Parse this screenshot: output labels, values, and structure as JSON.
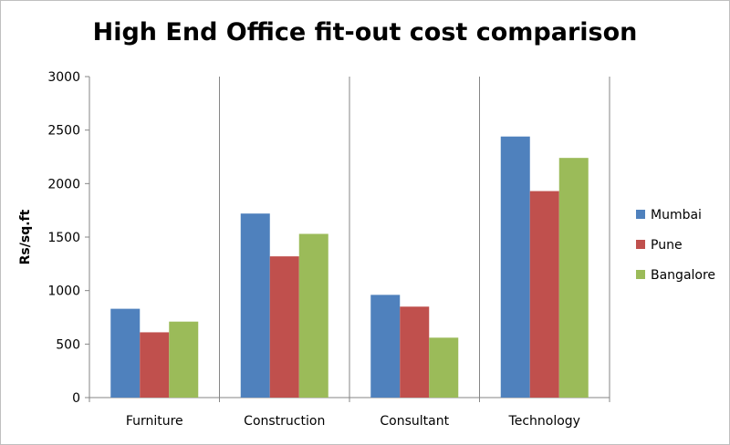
{
  "chart_data": {
    "type": "bar",
    "title": "High End Office fit-out cost comparison",
    "xlabel": "",
    "ylabel": "Rs/sq.ft",
    "categories": [
      "Furniture",
      "Construction",
      "Consultant",
      "Technology"
    ],
    "series": [
      {
        "name": "Mumbai",
        "color": "#4f81bd",
        "values": [
          830,
          1720,
          960,
          2440
        ]
      },
      {
        "name": "Pune",
        "color": "#c0504d",
        "values": [
          610,
          1320,
          850,
          1930
        ]
      },
      {
        "name": "Bangalore",
        "color": "#9bbb59",
        "values": [
          710,
          1530,
          560,
          2240
        ]
      }
    ],
    "ylim": [
      0,
      3000
    ],
    "yticks": [
      "0",
      "500",
      "1000",
      "1500",
      "2000",
      "2500",
      "3000"
    ],
    "legend_position": "right",
    "grid": "vertical-category-separators"
  }
}
